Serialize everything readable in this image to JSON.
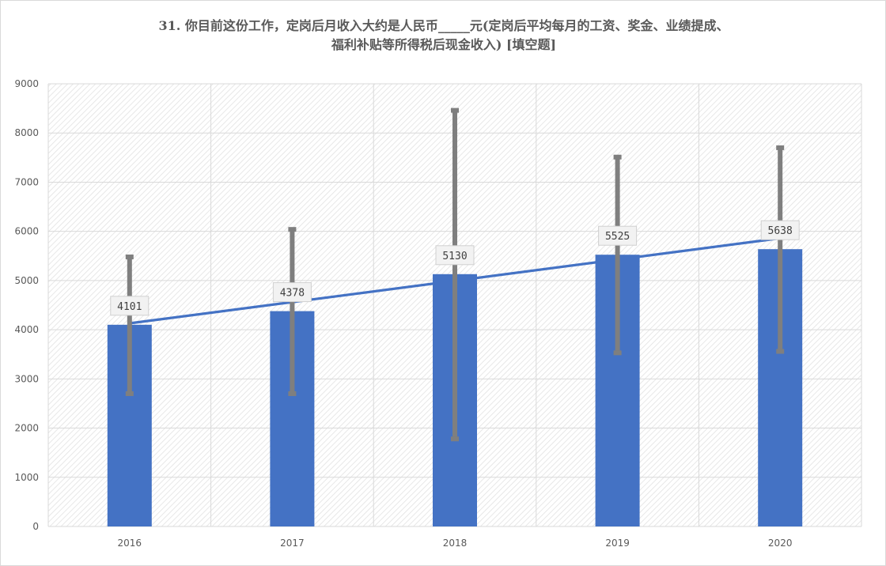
{
  "chart_data": {
    "type": "bar",
    "title_line1": "31. 你目前这份工作，定岗后月收入大约是人民币_____元(定岗后平均每月的工资、奖金、业绩提成、",
    "title_line2": "福利补贴等所得税后现金收入) [填空题]",
    "categories": [
      "2016",
      "2017",
      "2018",
      "2019",
      "2020"
    ],
    "values": [
      4101,
      4378,
      5130,
      5525,
      5638
    ],
    "data_labels": [
      "4101",
      "4378",
      "5130",
      "5525",
      "5638"
    ],
    "error_bars": [
      {
        "low": 2700,
        "high": 5480
      },
      {
        "low": 2700,
        "high": 6040
      },
      {
        "low": 1780,
        "high": 8460
      },
      {
        "low": 3530,
        "high": 7510
      },
      {
        "low": 3560,
        "high": 7700
      }
    ],
    "trendline": {
      "type": "linear",
      "start": 4130,
      "end": 5860
    },
    "ylim": [
      0,
      9000
    ],
    "yticks": [
      0,
      1000,
      2000,
      3000,
      4000,
      5000,
      6000,
      7000,
      8000,
      9000
    ],
    "grid": true,
    "legend": "none",
    "colors": {
      "bar": "#4472c4",
      "trendline": "#4472c4",
      "error_bar": "#7f7f7f",
      "grid": "#d9d9d9"
    }
  }
}
